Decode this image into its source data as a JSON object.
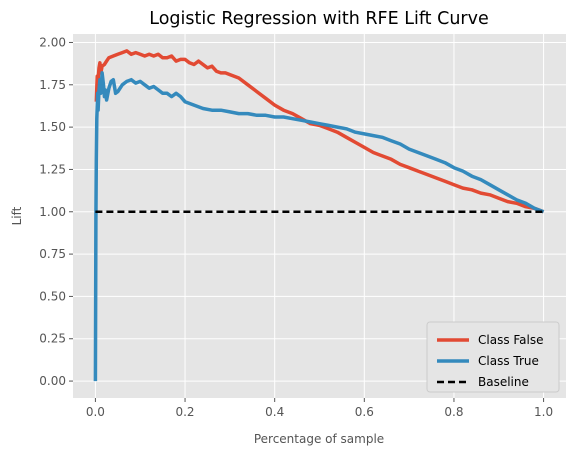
{
  "chart_data": {
    "type": "line",
    "title": "Logistic Regression with RFE Lift Curve",
    "xlabel": "Percentage of sample",
    "ylabel": "Lift",
    "xlim": [
      -0.05,
      1.05
    ],
    "ylim": [
      -0.1,
      2.05
    ],
    "xticks": [
      0.0,
      0.2,
      0.4,
      0.6,
      0.8,
      1.0
    ],
    "xtick_labels": [
      "0.0",
      "0.2",
      "0.4",
      "0.6",
      "0.8",
      "1.0"
    ],
    "yticks": [
      0.0,
      0.25,
      0.5,
      0.75,
      1.0,
      1.25,
      1.5,
      1.75,
      2.0
    ],
    "ytick_labels": [
      "0.00",
      "0.25",
      "0.50",
      "0.75",
      "1.00",
      "1.25",
      "1.50",
      "1.75",
      "2.00"
    ],
    "grid": true,
    "legend_position": "lower-right",
    "series": [
      {
        "name": "Class False",
        "color": "#e24a33",
        "style": "solid",
        "x": [
          0.002,
          0.004,
          0.006,
          0.008,
          0.01,
          0.012,
          0.015,
          0.02,
          0.025,
          0.03,
          0.04,
          0.05,
          0.06,
          0.07,
          0.08,
          0.09,
          0.1,
          0.11,
          0.12,
          0.13,
          0.14,
          0.15,
          0.16,
          0.17,
          0.18,
          0.19,
          0.2,
          0.21,
          0.22,
          0.23,
          0.24,
          0.25,
          0.26,
          0.27,
          0.28,
          0.29,
          0.3,
          0.32,
          0.34,
          0.36,
          0.38,
          0.4,
          0.42,
          0.44,
          0.46,
          0.48,
          0.5,
          0.52,
          0.54,
          0.56,
          0.58,
          0.6,
          0.62,
          0.64,
          0.66,
          0.68,
          0.7,
          0.72,
          0.74,
          0.76,
          0.78,
          0.8,
          0.82,
          0.84,
          0.86,
          0.88,
          0.9,
          0.92,
          0.94,
          0.96,
          0.98,
          1.0
        ],
        "y": [
          1.65,
          1.8,
          1.78,
          1.85,
          1.88,
          1.82,
          1.86,
          1.87,
          1.89,
          1.91,
          1.92,
          1.93,
          1.94,
          1.95,
          1.93,
          1.94,
          1.93,
          1.92,
          1.93,
          1.92,
          1.93,
          1.91,
          1.91,
          1.92,
          1.89,
          1.9,
          1.9,
          1.88,
          1.87,
          1.89,
          1.87,
          1.85,
          1.86,
          1.83,
          1.82,
          1.82,
          1.81,
          1.79,
          1.75,
          1.71,
          1.67,
          1.63,
          1.6,
          1.58,
          1.55,
          1.52,
          1.51,
          1.49,
          1.47,
          1.44,
          1.41,
          1.38,
          1.35,
          1.33,
          1.31,
          1.28,
          1.26,
          1.24,
          1.22,
          1.2,
          1.18,
          1.16,
          1.14,
          1.13,
          1.11,
          1.1,
          1.08,
          1.06,
          1.05,
          1.03,
          1.02,
          1.0
        ]
      },
      {
        "name": "Class True",
        "color": "#348abd",
        "style": "solid",
        "x": [
          0.0,
          0.001,
          0.002,
          0.003,
          0.004,
          0.005,
          0.006,
          0.008,
          0.01,
          0.012,
          0.015,
          0.018,
          0.02,
          0.022,
          0.025,
          0.03,
          0.035,
          0.04,
          0.045,
          0.05,
          0.06,
          0.07,
          0.08,
          0.09,
          0.1,
          0.11,
          0.12,
          0.13,
          0.14,
          0.15,
          0.16,
          0.17,
          0.18,
          0.19,
          0.2,
          0.22,
          0.24,
          0.26,
          0.28,
          0.3,
          0.32,
          0.34,
          0.36,
          0.38,
          0.4,
          0.42,
          0.44,
          0.46,
          0.48,
          0.5,
          0.52,
          0.54,
          0.56,
          0.58,
          0.6,
          0.62,
          0.64,
          0.66,
          0.68,
          0.7,
          0.72,
          0.74,
          0.76,
          0.78,
          0.8,
          0.82,
          0.84,
          0.86,
          0.88,
          0.9,
          0.92,
          0.94,
          0.96,
          0.98,
          1.0
        ],
        "y": [
          0.0,
          0.95,
          1.3,
          1.55,
          1.62,
          1.7,
          1.6,
          1.72,
          1.78,
          1.7,
          1.82,
          1.75,
          1.68,
          1.72,
          1.66,
          1.73,
          1.77,
          1.78,
          1.7,
          1.71,
          1.75,
          1.77,
          1.78,
          1.76,
          1.77,
          1.75,
          1.73,
          1.74,
          1.72,
          1.7,
          1.7,
          1.68,
          1.7,
          1.68,
          1.65,
          1.63,
          1.61,
          1.6,
          1.6,
          1.59,
          1.58,
          1.58,
          1.57,
          1.57,
          1.56,
          1.56,
          1.55,
          1.54,
          1.53,
          1.52,
          1.51,
          1.5,
          1.49,
          1.47,
          1.46,
          1.45,
          1.44,
          1.42,
          1.4,
          1.37,
          1.35,
          1.33,
          1.31,
          1.29,
          1.26,
          1.24,
          1.21,
          1.19,
          1.16,
          1.13,
          1.1,
          1.07,
          1.05,
          1.02,
          1.0
        ]
      },
      {
        "name": "Baseline",
        "color": "#000000",
        "style": "dashed",
        "x": [
          0.0,
          1.0
        ],
        "y": [
          1.0,
          1.0
        ]
      }
    ]
  }
}
